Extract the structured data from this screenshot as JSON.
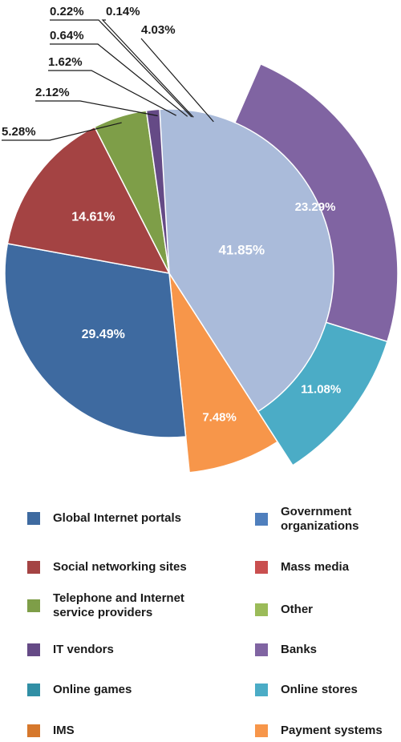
{
  "chart_data": {
    "type": "pie",
    "title": "",
    "outer_slices": [
      {
        "label": "Payment systems",
        "value": 7.48,
        "display": "7.48%",
        "color": "#f7964a"
      },
      {
        "label": "Global Internet portals",
        "value": 29.49,
        "display": "29.49%",
        "color": "#3e6aa0"
      },
      {
        "label": "Social networking sites",
        "value": 14.61,
        "display": "14.61%",
        "color": "#a44343"
      },
      {
        "label": "Telephone and Internet service providers",
        "value": 5.28,
        "display": "5.28%",
        "color": "#7e9e48"
      },
      {
        "label": "IT vendors",
        "value": 2.12,
        "display": "2.12%",
        "color": "#654a86"
      },
      {
        "label": "Online games",
        "value": 1.62,
        "display": "1.62%",
        "color": "#318fa5"
      },
      {
        "label": "IMS",
        "value": 0.64,
        "display": "0.64%",
        "color": "#d6782c"
      },
      {
        "label": "Government organizations",
        "value": 0.22,
        "display": "0.22%",
        "color": "#4f7fbd"
      },
      {
        "label": "Mass media",
        "value": 0.14,
        "display": "0.14%",
        "color": "#c94f4f"
      },
      {
        "label": "Other",
        "value": 4.03,
        "display": "4.03%",
        "color": "#9bbb59"
      },
      {
        "label": "Banks",
        "value": 23.29,
        "display": "23.29%",
        "color": "#8064a2"
      },
      {
        "label": "Online stores",
        "value": 11.08,
        "display": "11.08%",
        "color": "#4bacc6"
      }
    ],
    "inner_group": {
      "value": 41.85,
      "display": "41.85%",
      "color": "#aabbda"
    }
  },
  "legend": [
    {
      "label": "Global Internet portals",
      "color": "#3e6aa0"
    },
    {
      "label": "Government organizations",
      "color": "#4f7fbd"
    },
    {
      "label": "Social networking sites",
      "color": "#a44343"
    },
    {
      "label": "Mass media",
      "color": "#c94f4f"
    },
    {
      "label": "Telephone and Internet service providers",
      "color": "#7e9e48"
    },
    {
      "label": "Other",
      "color": "#9bbb59"
    },
    {
      "label": "IT vendors",
      "color": "#654a86"
    },
    {
      "label": "Banks",
      "color": "#8064a2"
    },
    {
      "label": "Online games",
      "color": "#318fa5"
    },
    {
      "label": "Online stores",
      "color": "#4bacc6"
    },
    {
      "label": "IMS",
      "color": "#d6782c"
    },
    {
      "label": "Payment systems",
      "color": "#f7964a"
    }
  ]
}
